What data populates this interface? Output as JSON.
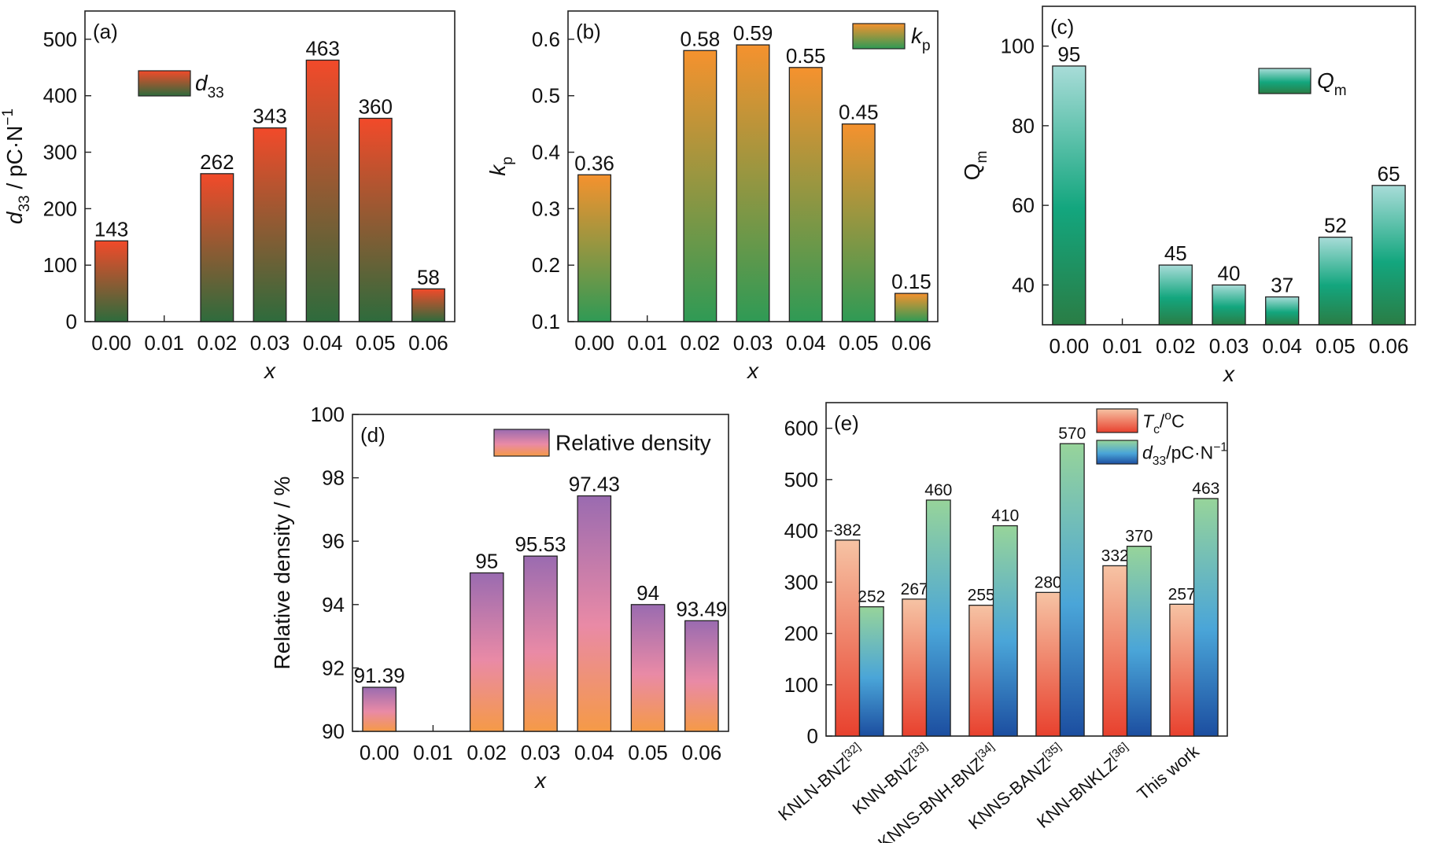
{
  "chart_data": [
    {
      "id": "a",
      "type": "bar",
      "panel_label": "(a)",
      "categories": [
        "0.00",
        "0.01",
        "0.02",
        "0.03",
        "0.04",
        "0.05",
        "0.06"
      ],
      "series": [
        {
          "name": "d33",
          "name_rich": [
            [
              "d",
              "i"
            ],
            [
              "33",
              "sub"
            ]
          ],
          "values": [
            143,
            null,
            262,
            343,
            463,
            360,
            58
          ],
          "labels": [
            "143",
            "",
            "262",
            "343",
            "463",
            "360",
            "58"
          ]
        }
      ],
      "xlabel": "x",
      "ylabel_rich": [
        [
          "d",
          "i"
        ],
        [
          "33",
          "sub"
        ],
        [
          " / pC·N",
          ""
        ],
        [
          "−1",
          "sup"
        ]
      ],
      "ylim": [
        0,
        550
      ],
      "yticks": [
        0,
        100,
        200,
        300,
        400,
        500
      ],
      "ytick_labels": [
        "0",
        "100",
        "200",
        "300",
        "400",
        "500"
      ],
      "legend": "top-center",
      "gradient": {
        "top": "#f24a2a",
        "bottom": "#2e6b3c"
      },
      "grid": false
    },
    {
      "id": "b",
      "type": "bar",
      "panel_label": "(b)",
      "categories": [
        "0.00",
        "0.01",
        "0.02",
        "0.03",
        "0.04",
        "0.05",
        "0.06"
      ],
      "series": [
        {
          "name": "kp",
          "name_rich": [
            [
              "k",
              "i"
            ],
            [
              "p",
              "sub"
            ]
          ],
          "values": [
            0.36,
            null,
            0.58,
            0.59,
            0.55,
            0.45,
            0.15
          ],
          "labels": [
            "0.36",
            "",
            "0.58",
            "0.59",
            "0.55",
            "0.45",
            "0.15"
          ]
        }
      ],
      "xlabel": "x",
      "ylabel_rich": [
        [
          "k",
          "i"
        ],
        [
          "p",
          "sub"
        ]
      ],
      "ylim": [
        0.1,
        0.65
      ],
      "yticks": [
        0.1,
        0.2,
        0.3,
        0.4,
        0.5,
        0.6
      ],
      "ytick_labels": [
        "0.1",
        "0.2",
        "0.3",
        "0.4",
        "0.5",
        "0.6"
      ],
      "legend": "top-right",
      "gradient": {
        "top": "#f5922e",
        "bottom": "#2f9a55"
      },
      "grid": false
    },
    {
      "id": "c",
      "type": "bar",
      "panel_label": "(c)",
      "categories": [
        "0.00",
        "0.01",
        "0.02",
        "0.03",
        "0.04",
        "0.05",
        "0.06"
      ],
      "series": [
        {
          "name": "Qm",
          "name_rich": [
            [
              "Q",
              "i"
            ],
            [
              "m",
              "sub"
            ]
          ],
          "values": [
            95,
            null,
            45,
            40,
            37,
            52,
            65
          ],
          "labels": [
            "95",
            "",
            "45",
            "40",
            "37",
            "52",
            "65"
          ]
        }
      ],
      "xlabel": "x",
      "ylabel_rich": [
        [
          "Q",
          ""
        ],
        [
          "m",
          "sub"
        ]
      ],
      "ylim": [
        30,
        110
      ],
      "yticks": [
        40,
        60,
        80,
        100
      ],
      "ytick_labels": [
        "40",
        "60",
        "80",
        "100"
      ],
      "legend": "top-right",
      "gradient": {
        "top": "#a8dcd8",
        "mid": "#13a67e",
        "bottom": "#2a7d45"
      },
      "grid": false
    },
    {
      "id": "d",
      "type": "bar",
      "panel_label": "(d)",
      "categories": [
        "0.00",
        "0.01",
        "0.02",
        "0.03",
        "0.04",
        "0.05",
        "0.06"
      ],
      "series": [
        {
          "name": "Relative density",
          "name_rich": [
            [
              "Relative density",
              ""
            ]
          ],
          "values": [
            91.39,
            null,
            95,
            95.53,
            97.43,
            94,
            93.49
          ],
          "labels": [
            "91.39",
            "",
            "95",
            "95.53",
            "97.43",
            "94",
            "93.49"
          ]
        }
      ],
      "xlabel": "x",
      "ylabel_rich": [
        [
          "Relative density / %",
          ""
        ]
      ],
      "ylim": [
        90,
        100
      ],
      "yticks": [
        90,
        92,
        94,
        96,
        98,
        100
      ],
      "ytick_labels": [
        "90",
        "92",
        "94",
        "96",
        "98",
        "100"
      ],
      "legend": "top-right",
      "gradient": {
        "top": "#9a6bb0",
        "mid": "#e98aa6",
        "bottom": "#f59a47"
      },
      "grid": false
    },
    {
      "id": "e",
      "type": "bar",
      "panel_label": "(e)",
      "categories": [
        "KNLN-BNZ",
        "KNN-BNZ",
        "KNNS-BNH-BNZ",
        "KNNS-BANZ",
        "KNN-BNKLZ",
        "This work"
      ],
      "category_refs": [
        "[32]",
        "[33]",
        "[34]",
        "[35]",
        "[36]",
        ""
      ],
      "series": [
        {
          "name": "Tc/oC",
          "name_rich": [
            [
              "T",
              "i"
            ],
            [
              "c",
              "sub"
            ],
            [
              "/",
              ""
            ],
            [
              "o",
              "sup"
            ],
            [
              "C",
              ""
            ]
          ],
          "values": [
            382,
            267,
            255,
            280,
            332,
            257
          ],
          "labels": [
            "382",
            "267",
            "255",
            "280",
            "332",
            "257"
          ],
          "gradient": {
            "top": "#f6c3a4",
            "bottom": "#e8412e"
          }
        },
        {
          "name": "d33/pC·N−1",
          "name_rich": [
            [
              "d",
              "i"
            ],
            [
              "33",
              "sub"
            ],
            [
              "/pC·N",
              ""
            ],
            [
              "−1",
              "sup"
            ]
          ],
          "values": [
            252,
            460,
            410,
            570,
            370,
            463
          ],
          "labels": [
            "252",
            "460",
            "410",
            "570",
            "370",
            "463"
          ],
          "gradient": {
            "top": "#97d49a",
            "mid": "#4aa5d8",
            "bottom": "#1c4ea0"
          }
        }
      ],
      "xlabel": "",
      "ylim": [
        0,
        650
      ],
      "yticks": [
        0,
        100,
        200,
        300,
        400,
        500,
        600
      ],
      "ytick_labels": [
        "0",
        "100",
        "200",
        "300",
        "400",
        "500",
        "600"
      ],
      "legend": "top-right",
      "grid": false
    }
  ]
}
